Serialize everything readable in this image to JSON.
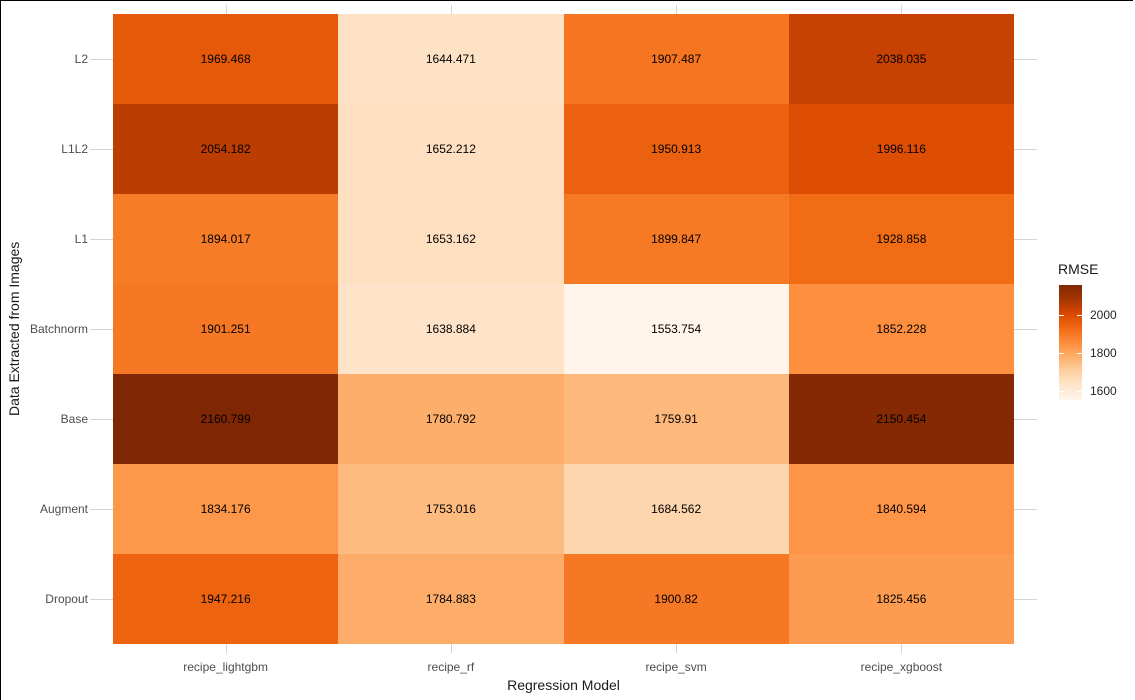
{
  "chart_data": {
    "type": "heatmap",
    "xlabel": "Regression Model",
    "ylabel": "Data Extracted from Images",
    "x_categories": [
      "recipe_lightgbm",
      "recipe_rf",
      "recipe_svm",
      "recipe_xgboost"
    ],
    "y_categories": [
      "L2",
      "L1L2",
      "L1",
      "Batchnorm",
      "Base",
      "Augment",
      "Dropout"
    ],
    "series": [
      {
        "name": "L2",
        "values": [
          1969.468,
          1644.471,
          1907.487,
          2038.035
        ]
      },
      {
        "name": "L1L2",
        "values": [
          2054.182,
          1652.212,
          1950.913,
          1996.116
        ]
      },
      {
        "name": "L1",
        "values": [
          1894.017,
          1653.162,
          1899.847,
          1928.858
        ]
      },
      {
        "name": "Batchnorm",
        "values": [
          1901.251,
          1638.884,
          1553.754,
          1852.228
        ]
      },
      {
        "name": "Base",
        "values": [
          2160.799,
          1780.792,
          1759.91,
          2150.454
        ]
      },
      {
        "name": "Augment",
        "values": [
          1834.176,
          1753.016,
          1684.562,
          1840.594
        ]
      },
      {
        "name": "Dropout",
        "values": [
          1947.216,
          1784.883,
          1900.82,
          1825.456
        ]
      }
    ],
    "legend": {
      "title": "RMSE",
      "ticks": [
        2000,
        1800,
        1600
      ],
      "min": 1553.754,
      "max": 2160.799,
      "position": "right"
    },
    "palette": {
      "name": "Oranges",
      "colors": [
        "#fff5eb",
        "#fee6ce",
        "#fdd0a2",
        "#fdae6b",
        "#fd8d3c",
        "#f16913",
        "#d94801",
        "#a63603",
        "#7f2704"
      ]
    },
    "grid": true,
    "layout": {
      "background": "#ffffff",
      "gridline_color": "#d4d4d4",
      "tick_label_color": "#4d4d4d",
      "title_color": "#1a1a1a",
      "cell_text_color": "#000000"
    }
  }
}
